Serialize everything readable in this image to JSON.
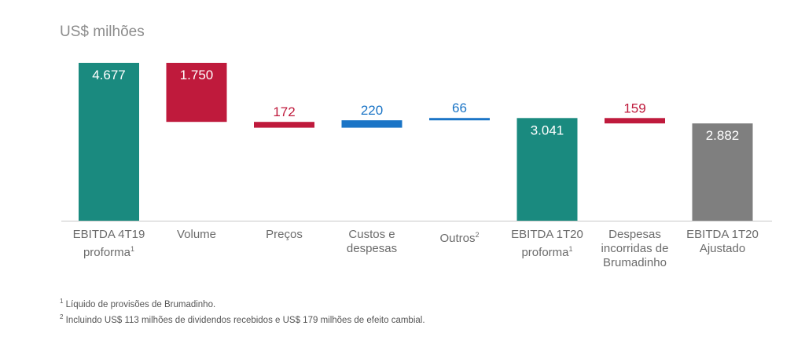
{
  "unit_label": "US$ milhões",
  "chart_data": {
    "type": "bar",
    "subtype": "waterfall",
    "categories": [
      {
        "label": "EBITDA 4T19 proforma",
        "sup": "1"
      },
      {
        "label": "Volume",
        "sup": ""
      },
      {
        "label": "Preços",
        "sup": ""
      },
      {
        "label": "Custos e despesas",
        "sup": ""
      },
      {
        "label": "Outros",
        "sup": "2"
      },
      {
        "label": "EBITDA 1T20 proforma",
        "sup": "1"
      },
      {
        "label": "Despesas incorridas de Brumadinho",
        "sup": ""
      },
      {
        "label": "EBITDA 1T20 Ajustado",
        "sup": ""
      }
    ],
    "bars": [
      {
        "kind": "total",
        "base": 0,
        "top": 4677,
        "label": "4.677",
        "color": "#1a8a7f"
      },
      {
        "kind": "decrease",
        "base": 2927,
        "top": 4677,
        "label": "1.750",
        "color": "#bf1a3c"
      },
      {
        "kind": "decrease",
        "base": 2755,
        "top": 2927,
        "label": "172",
        "color": "#bf1a3c"
      },
      {
        "kind": "increase",
        "base": 2755,
        "top": 2975,
        "label": "220",
        "color": "#1a74c6"
      },
      {
        "kind": "increase",
        "base": 2975,
        "top": 3041,
        "label": "66",
        "color": "#1a74c6"
      },
      {
        "kind": "total",
        "base": 0,
        "top": 3041,
        "label": "3.041",
        "color": "#1a8a7f"
      },
      {
        "kind": "decrease",
        "base": 2882,
        "top": 3041,
        "label": "159",
        "color": "#bf1a3c"
      },
      {
        "kind": "total",
        "base": 0,
        "top": 2882,
        "label": "2.882",
        "color": "#7f7f7f"
      }
    ],
    "ylim": [
      0,
      4677
    ]
  },
  "footnotes": [
    {
      "sup": "1",
      "text": "Líquido de provisões de Brumadinho."
    },
    {
      "sup": "2",
      "text": "Incluindo US$ 113 milhões de dividendos recebidos e US$ 179 milhões de efeito cambial."
    }
  ]
}
